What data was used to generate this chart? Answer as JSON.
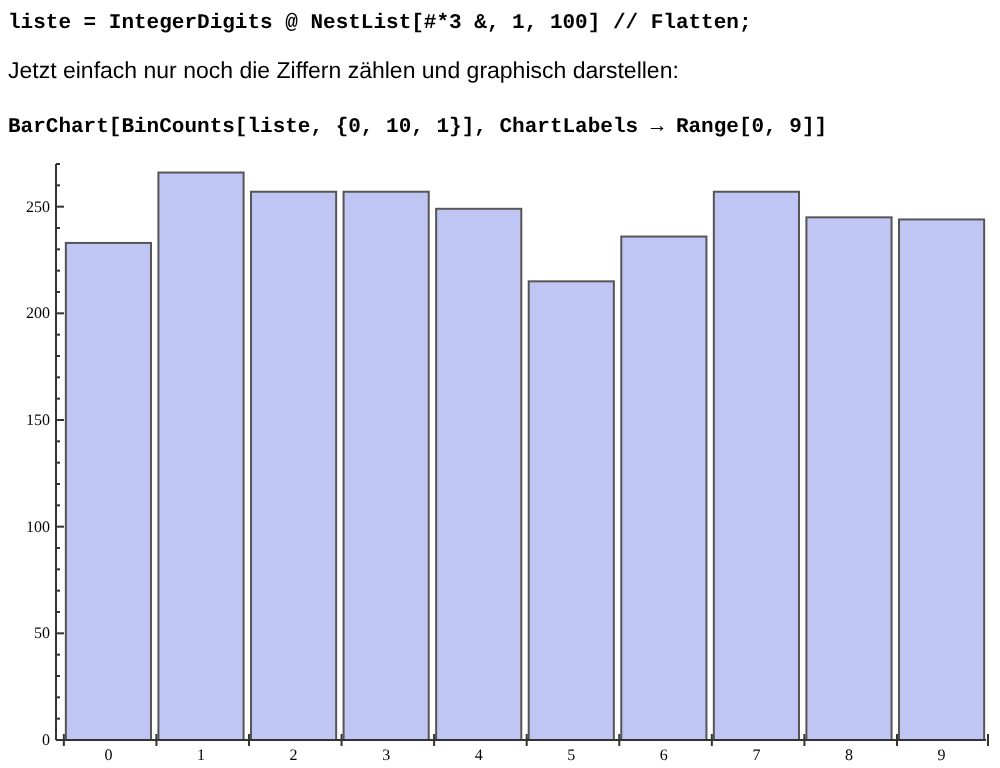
{
  "chart_data": {
    "type": "bar",
    "title": "liste = IntegerDigits @ NestList[#*3 &, 1, 100] // Flatten;",
    "subtitle": "Jetzt einfach nur noch die Ziffern zählen und graphisch darstellen:",
    "annotations": [
      "BarChart[BinCounts[liste, {0, 10, 1}], ChartLabels → Range[0, 9]]"
    ],
    "categories": [
      "0",
      "1",
      "2",
      "3",
      "4",
      "5",
      "6",
      "7",
      "8",
      "9"
    ],
    "values": [
      233,
      266,
      257,
      257,
      249,
      215,
      236,
      257,
      245,
      244
    ],
    "color": "#c0c6f4",
    "ylim": [
      0,
      270
    ],
    "yticks": [
      0,
      {
        "value": 10,
        "label": null
      },
      {
        "value": 20,
        "label": null
      },
      {
        "value": 30,
        "label": null
      },
      {
        "value": 40,
        "label": null
      },
      50,
      {
        "value": 60,
        "label": null
      },
      {
        "value": 70,
        "label": null
      },
      {
        "value": 80,
        "label": null
      },
      {
        "value": 90,
        "label": null
      },
      100,
      {
        "value": 110,
        "label": null
      },
      {
        "value": 120,
        "label": null
      },
      {
        "value": 130,
        "label": null
      },
      {
        "value": 140,
        "label": null
      },
      150,
      {
        "value": 160,
        "label": null
      },
      {
        "value": 170,
        "label": null
      },
      {
        "value": 180,
        "label": null
      },
      {
        "value": 190,
        "label": null
      },
      200,
      {
        "value": 210,
        "label": null
      },
      {
        "value": 220,
        "label": null
      },
      {
        "value": 230,
        "label": null
      },
      {
        "value": 240,
        "label": null
      },
      250,
      {
        "value": 260,
        "label": null
      },
      {
        "value": 270,
        "label": null
      }
    ],
    "grid": false
  }
}
